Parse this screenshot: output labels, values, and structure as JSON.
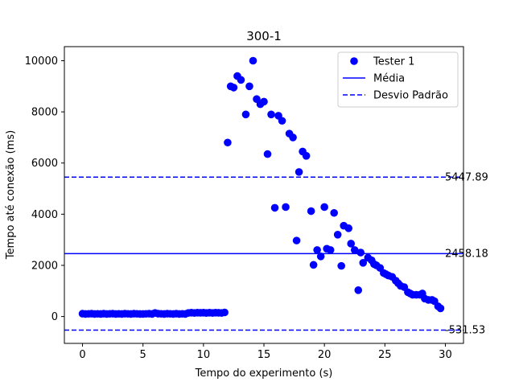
{
  "chart_data": {
    "type": "scatter",
    "title": "300-1",
    "xlabel": "Tempo do experimento (s)",
    "ylabel": "Tempo até conexão (ms)",
    "xlim": [
      -1.5,
      31.5
    ],
    "ylim": [
      -1050,
      10550
    ],
    "xticks": [
      0,
      5,
      10,
      15,
      20,
      25,
      30
    ],
    "yticks": [
      0,
      2000,
      4000,
      6000,
      8000,
      10000
    ],
    "grid": false,
    "legend_position": "top-right",
    "colors": {
      "points": "#0000ff",
      "mean": "#0000ff",
      "std": "#0000ff"
    },
    "series": [
      {
        "name": "Tester 1",
        "x": [
          0.0,
          0.25,
          0.5,
          0.75,
          1.0,
          1.25,
          1.5,
          1.75,
          2.0,
          2.25,
          2.5,
          2.75,
          3.0,
          3.25,
          3.5,
          3.75,
          4.0,
          4.25,
          4.5,
          4.75,
          5.0,
          5.25,
          5.5,
          5.75,
          6.0,
          6.25,
          6.5,
          6.75,
          7.0,
          7.25,
          7.5,
          7.75,
          8.0,
          8.25,
          8.5,
          8.75,
          9.0,
          9.25,
          9.5,
          9.75,
          10.0,
          10.25,
          10.5,
          10.75,
          11.0,
          11.25,
          11.5,
          11.75,
          12.0,
          12.25,
          12.5,
          12.8,
          13.1,
          13.5,
          13.8,
          14.1,
          14.4,
          14.7,
          15.0,
          15.3,
          15.6,
          15.9,
          16.2,
          16.5,
          16.8,
          17.1,
          17.4,
          17.7,
          17.9,
          18.2,
          18.5,
          18.9,
          19.1,
          19.4,
          19.7,
          20.0,
          20.2,
          20.5,
          20.8,
          21.1,
          21.4,
          21.6,
          22.0,
          22.2,
          22.5,
          22.8,
          23.0,
          23.2,
          23.6,
          23.9,
          24.1,
          24.3,
          24.6,
          24.9,
          25.1,
          25.3,
          25.6,
          25.9,
          26.1,
          26.3,
          26.6,
          26.9,
          27.1,
          27.3,
          27.6,
          27.9,
          28.1,
          28.3,
          28.6,
          28.9,
          29.1,
          29.4,
          29.6
        ],
        "y": [
          110,
          100,
          105,
          110,
          100,
          105,
          100,
          110,
          100,
          105,
          110,
          100,
          105,
          100,
          110,
          105,
          100,
          110,
          105,
          100,
          100,
          105,
          110,
          100,
          140,
          110,
          105,
          100,
          110,
          105,
          100,
          110,
          100,
          105,
          100,
          140,
          150,
          140,
          150,
          145,
          150,
          140,
          150,
          140,
          150,
          145,
          140,
          160,
          6800,
          9000,
          8950,
          9400,
          9250,
          7900,
          9000,
          10000,
          8500,
          8300,
          8400,
          6350,
          7900,
          4250,
          7850,
          7650,
          4280,
          7150,
          7000,
          2970,
          5650,
          6450,
          6280,
          4120,
          2020,
          2600,
          2350,
          4280,
          2650,
          2600,
          4050,
          3200,
          1980,
          3550,
          3450,
          2850,
          2600,
          1030,
          2500,
          2100,
          2300,
          2200,
          2050,
          2000,
          1900,
          1700,
          1650,
          1600,
          1550,
          1400,
          1300,
          1200,
          1150,
          950,
          900,
          850,
          850,
          850,
          900,
          700,
          650,
          650,
          600,
          400,
          320
        ]
      }
    ],
    "lines": [
      {
        "name": "Média",
        "y": 2458.18,
        "label": "2458.18",
        "style": "solid"
      },
      {
        "name": "Desvio Padrão",
        "y": 5447.89,
        "label": "5447.89",
        "style": "dashed"
      },
      {
        "y": -531.53,
        "label": "-531.53",
        "style": "dashed"
      }
    ]
  }
}
